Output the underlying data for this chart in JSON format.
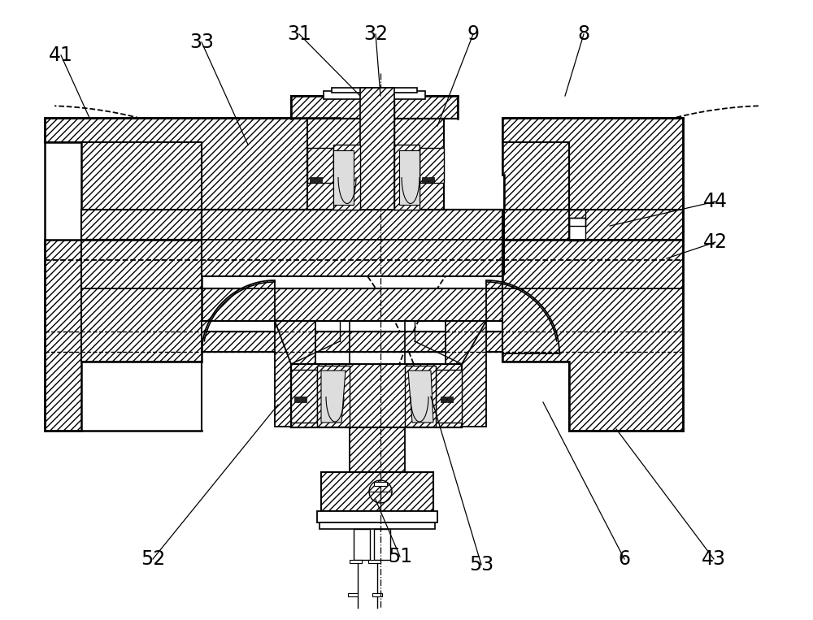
{
  "bg": "#ffffff",
  "lc": "#000000",
  "hatch": "////",
  "fw": 10.0,
  "fh": 7.63,
  "dpi": 100,
  "labels": [
    [
      "41",
      75,
      68,
      110,
      145
    ],
    [
      "33",
      248,
      52,
      305,
      178
    ],
    [
      "31",
      368,
      42,
      443,
      118
    ],
    [
      "32",
      462,
      42,
      468,
      118
    ],
    [
      "9",
      582,
      42,
      538,
      155
    ],
    [
      "8",
      718,
      42,
      695,
      118
    ],
    [
      "44",
      880,
      248,
      750,
      278
    ],
    [
      "42",
      880,
      298,
      820,
      318
    ],
    [
      "43",
      878,
      688,
      758,
      528
    ],
    [
      "6",
      768,
      688,
      668,
      495
    ],
    [
      "53",
      592,
      695,
      530,
      488
    ],
    [
      "51",
      492,
      685,
      462,
      615
    ],
    [
      "52",
      188,
      688,
      342,
      498
    ]
  ]
}
